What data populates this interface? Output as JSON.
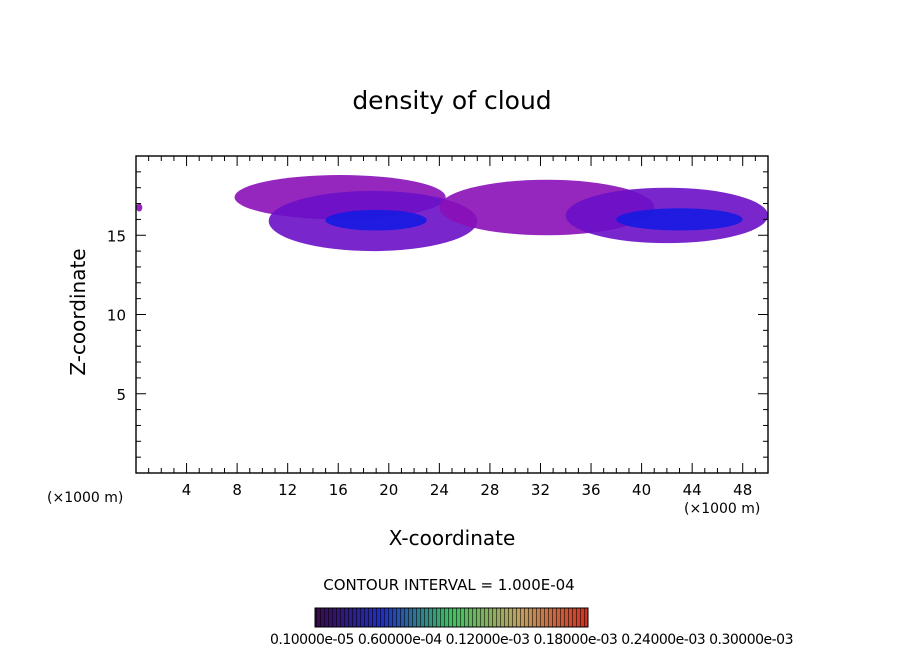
{
  "chart_data": {
    "type": "heatmap",
    "title": "density of cloud",
    "xlabel": "X-coordinate",
    "ylabel": "Z-coordinate",
    "x_unit_left": "(×1000 m)",
    "x_unit_right": "(×1000 m)",
    "xlim": [
      0,
      50
    ],
    "ylim": [
      0,
      20
    ],
    "xticks": [
      4,
      8,
      12,
      16,
      20,
      24,
      28,
      32,
      36,
      40,
      44,
      48
    ],
    "yticks": [
      5,
      10,
      15
    ],
    "contour_interval_text": "CONTOUR INTERVAL = 1.000E-04",
    "colorbar_labels_text": "0.10000e-05 0.60000e-04 0.12000e-03 0.18000e-03 0.24000e-03 0.30000e-03",
    "colorbar_range": [
      1e-06,
      0.0003
    ],
    "colors": {
      "outer": "#8a10b8",
      "mid": "#6a10c8",
      "inner": "#3a18d8",
      "core": "#1a1ae0"
    },
    "cloud_regions": [
      {
        "name": "west-cloud-upper",
        "x": [
          7.8,
          24.5
        ],
        "z": [
          16.0,
          18.8
        ],
        "level": "outer"
      },
      {
        "name": "west-cloud-lower",
        "x": [
          10.5,
          27.0
        ],
        "z": [
          14.0,
          17.8
        ],
        "level": "mid"
      },
      {
        "name": "west-cloud-core",
        "x": [
          15.0,
          23.0
        ],
        "z": [
          15.3,
          16.6
        ],
        "level": "core"
      },
      {
        "name": "middle-band",
        "x": [
          24.0,
          41.0
        ],
        "z": [
          15.0,
          18.5
        ],
        "level": "outer"
      },
      {
        "name": "east-cloud",
        "x": [
          34.0,
          50.0
        ],
        "z": [
          14.5,
          18.0
        ],
        "level": "mid"
      },
      {
        "name": "east-cloud-core",
        "x": [
          38.0,
          48.0
        ],
        "z": [
          15.3,
          16.7
        ],
        "level": "core"
      },
      {
        "name": "left-edge-fragment",
        "x": [
          0.0,
          0.5
        ],
        "z": [
          16.5,
          17.0
        ],
        "level": "outer"
      }
    ]
  }
}
